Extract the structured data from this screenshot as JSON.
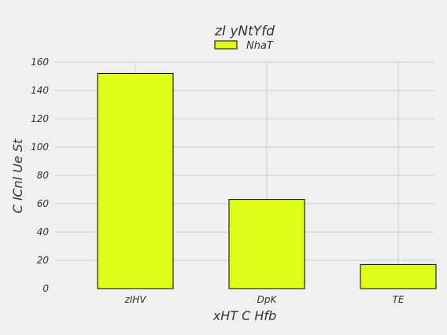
{
  "chart_data": {
    "type": "bar",
    "title": "zI yNtYfd",
    "xlabel": "xHT C Hfb",
    "ylabel": "C lCnl Ue St",
    "categories": [
      "zIHV",
      "DpK",
      "TE"
    ],
    "series": [
      {
        "name": "NhaT",
        "values": [
          152,
          63,
          17
        ],
        "color": "#dfff1a"
      }
    ],
    "ylim": [
      0,
      160
    ],
    "yticks": [
      0,
      20,
      40,
      60,
      80,
      100,
      120,
      140,
      160
    ],
    "grid": true,
    "legend_position": "top-center"
  }
}
